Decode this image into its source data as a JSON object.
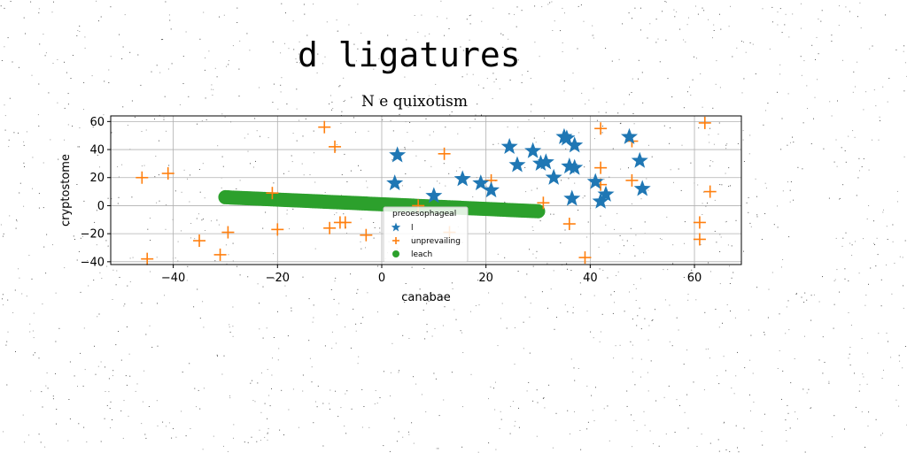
{
  "figure": {
    "suptitle": "d ligatures",
    "title": "N e quixotism"
  },
  "chart_data": {
    "type": "scatter",
    "title": "N e quixotism",
    "xlabel": "canabae",
    "ylabel": "cryptostome",
    "xlim": [
      -52,
      69
    ],
    "ylim": [
      -42,
      64
    ],
    "xticks": [
      -40,
      -20,
      0,
      20,
      40,
      60
    ],
    "yticks": [
      -40,
      -20,
      0,
      20,
      40,
      60
    ],
    "grid": true,
    "legend": {
      "title": "preoesophageal",
      "placement": "lower-center"
    },
    "series": [
      {
        "name": "l",
        "marker": "star",
        "color": "#1f77b4",
        "points": [
          [
            3,
            36
          ],
          [
            2.5,
            16
          ],
          [
            10,
            7
          ],
          [
            15.5,
            19
          ],
          [
            19,
            16
          ],
          [
            21,
            11
          ],
          [
            24.5,
            42
          ],
          [
            26,
            29
          ],
          [
            29,
            39
          ],
          [
            30.5,
            30
          ],
          [
            31.5,
            31
          ],
          [
            33,
            20
          ],
          [
            35,
            49
          ],
          [
            35.5,
            48
          ],
          [
            36,
            28
          ],
          [
            36.5,
            5
          ],
          [
            37,
            43
          ],
          [
            37,
            27
          ],
          [
            41,
            17
          ],
          [
            42,
            3
          ],
          [
            43,
            8
          ],
          [
            47.5,
            49
          ],
          [
            49.5,
            32
          ],
          [
            50,
            12
          ]
        ]
      },
      {
        "name": "unprevailing",
        "marker": "plus",
        "color": "#ff7f0e",
        "points": [
          [
            -46,
            20
          ],
          [
            -45,
            -38
          ],
          [
            -41,
            23
          ],
          [
            -35,
            -25
          ],
          [
            -31,
            -35
          ],
          [
            -29.5,
            -19
          ],
          [
            -21,
            9
          ],
          [
            -20,
            -17
          ],
          [
            -11,
            56
          ],
          [
            -10,
            -16
          ],
          [
            -9,
            42
          ],
          [
            -8,
            -12
          ],
          [
            -7,
            -12
          ],
          [
            -3,
            -21
          ],
          [
            7,
            0
          ],
          [
            12,
            37
          ],
          [
            13,
            -19
          ],
          [
            21,
            18
          ],
          [
            31,
            2
          ],
          [
            36,
            -13
          ],
          [
            39,
            -37
          ],
          [
            42,
            55
          ],
          [
            42,
            27
          ],
          [
            42,
            15
          ],
          [
            48,
            46
          ],
          [
            48,
            18
          ],
          [
            61,
            -12
          ],
          [
            61,
            -24
          ],
          [
            62,
            59
          ],
          [
            63,
            10
          ]
        ]
      },
      {
        "name": "leach",
        "marker": "circle",
        "color": "#2ca02c",
        "line": {
          "x0": -30,
          "y0": 6,
          "x1": 30,
          "y1": -4,
          "count": 121
        }
      }
    ]
  }
}
